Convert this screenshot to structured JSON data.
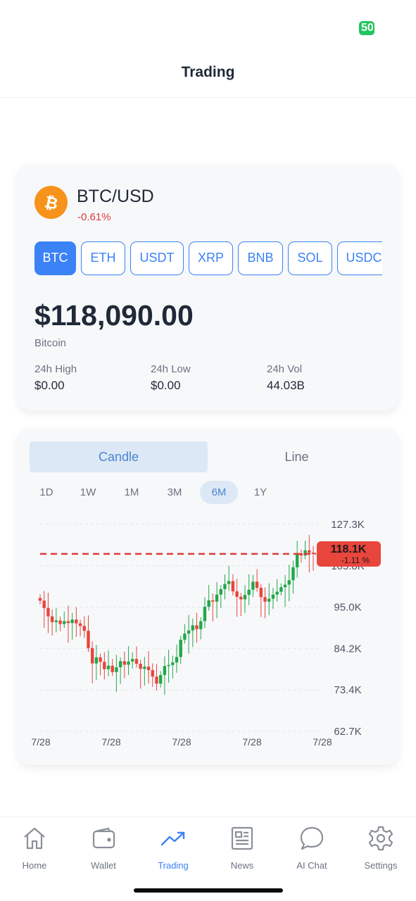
{
  "status": {
    "badge": "50"
  },
  "header": {
    "title": "Trading"
  },
  "ticker": {
    "pair": "BTC/USD",
    "change": "-0.61%",
    "coins": [
      "BTC",
      "ETH",
      "USDT",
      "XRP",
      "BNB",
      "SOL",
      "USDC"
    ],
    "active_coin": "BTC",
    "price": "$118,090.00",
    "name": "Bitcoin",
    "stats": [
      {
        "label": "24h High",
        "value": "$0.00"
      },
      {
        "label": "24h Low",
        "value": "$0.00"
      },
      {
        "label": "24h Vol",
        "value": "44.03B"
      }
    ]
  },
  "chart_view": {
    "modes": [
      "Candle",
      "Line"
    ],
    "active_mode": "Candle",
    "ranges": [
      "1D",
      "1W",
      "1M",
      "3M",
      "6M",
      "1Y"
    ],
    "active_range": "6M"
  },
  "chart_data": {
    "type": "candlestick",
    "y_ticks": [
      "127.3K",
      "105.8K",
      "95.0K",
      "84.2K",
      "73.4K",
      "62.7K"
    ],
    "x_ticks": [
      "7/28",
      "7/28",
      "7/28",
      "7/28",
      "7/28"
    ],
    "ylim": [
      62.7,
      127.3
    ],
    "current_price_label": "118.1K",
    "current_change_label": "-1.11  %",
    "current_price": 118.1,
    "closes": [
      103.5,
      101.2,
      98.6,
      96.8,
      97.3,
      96.2,
      97.1,
      96.5,
      97.6,
      96.4,
      95.6,
      94.1,
      88.7,
      83.9,
      85.8,
      84.4,
      82.1,
      83.2,
      81.2,
      82.7,
      84.6,
      83.5,
      84.5,
      85.3,
      83.8,
      82.2,
      82.9,
      81.8,
      79.8,
      77.6,
      80.3,
      83.1,
      83.4,
      84.2,
      85.9,
      91.3,
      93.2,
      94.2,
      95.8,
      94.6,
      97.1,
      101.6,
      103.6,
      103.2,
      105.4,
      107.1,
      108.7,
      109.6,
      106.4,
      104.7,
      103.9,
      105.3,
      106.9,
      109.4,
      107.5,
      104.6,
      103.2,
      104.1,
      105.4,
      106.3,
      107.7,
      108.5,
      109.9,
      113.9,
      118.3,
      117.6,
      119.2,
      118.5,
      118.1
    ],
    "grid": true
  },
  "nav": {
    "items": [
      {
        "label": "Home",
        "icon": "home-icon"
      },
      {
        "label": "Wallet",
        "icon": "wallet-icon"
      },
      {
        "label": "Trading",
        "icon": "trending-up-icon"
      },
      {
        "label": "News",
        "icon": "news-icon"
      },
      {
        "label": "AI Chat",
        "icon": "chat-bubble-icon"
      },
      {
        "label": "Settings",
        "icon": "gear-icon"
      }
    ],
    "active": "Trading"
  },
  "colors": {
    "accent": "#3b82f6",
    "up": "#22a84a",
    "down": "#e8453c",
    "bitcoin": "#f7931a"
  }
}
